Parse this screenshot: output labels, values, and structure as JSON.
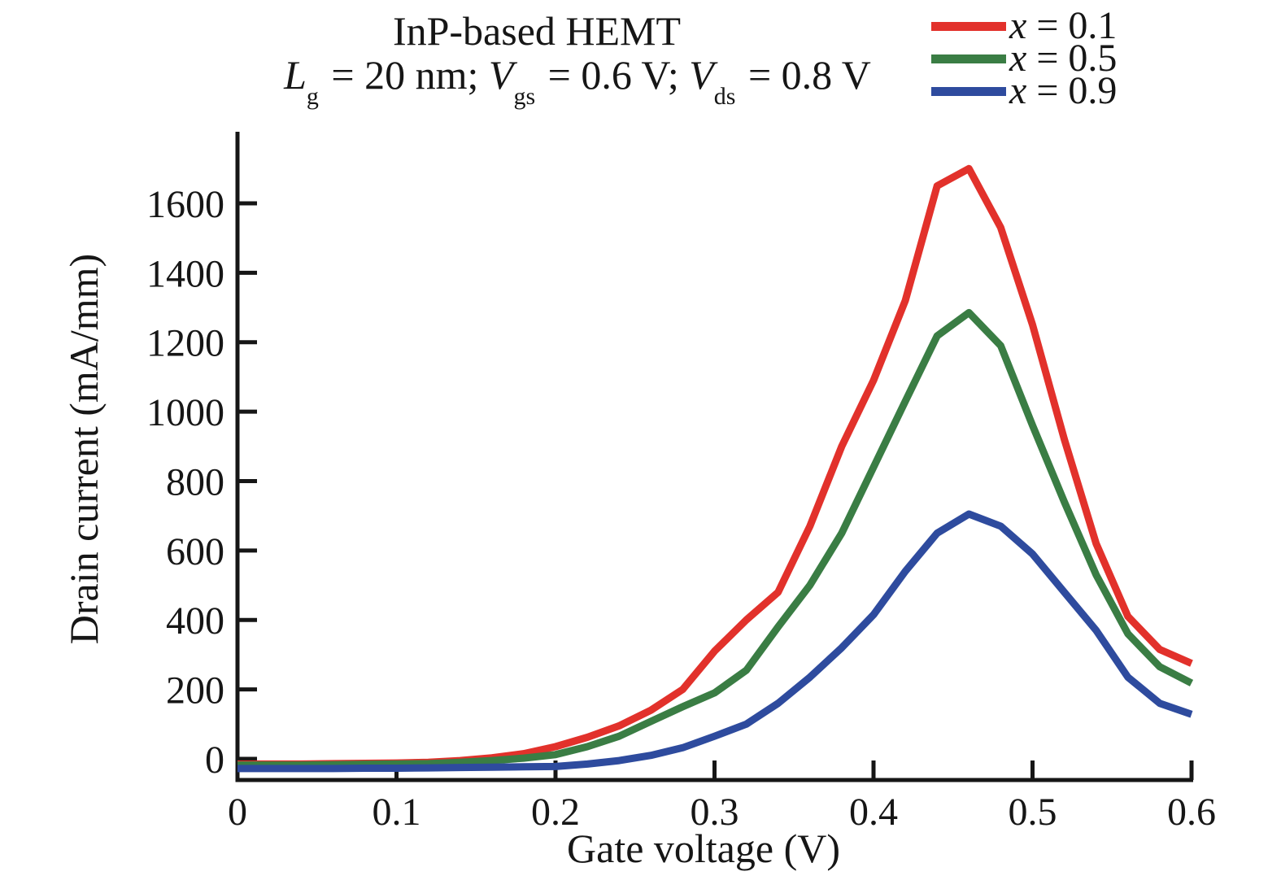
{
  "title": "InP-based HEMT",
  "subtitle": {
    "p1_var": "L",
    "p1_sub": "g",
    "p1_rest": " = 20 nm; ",
    "p2_var": "V",
    "p2_sub": "gs",
    "p2_rest": " = 0.6 V; ",
    "p3_var": "V",
    "p3_sub": "ds",
    "p3_rest": " = 0.8 V"
  },
  "chart_data": {
    "type": "line",
    "title": "InP-based HEMT",
    "subtitle_text": "Lg = 20 nm; Vgs = 0.6 V; Vds = 0.8 V",
    "xlabel": "Gate voltage (V)",
    "ylabel": "Drain current (mA/mm)",
    "xlim": [
      0,
      0.6
    ],
    "ylim": [
      -61,
      1806
    ],
    "grid": false,
    "legend_position": "top-right",
    "x_ticks": [
      0,
      0.1,
      0.2,
      0.3,
      0.4,
      0.5,
      0.6
    ],
    "x_tick_labels": [
      "0",
      "0.1",
      "0.2",
      "0.3",
      "0.4",
      "0.5",
      "0.6"
    ],
    "y_ticks": [
      0,
      200,
      400,
      600,
      800,
      1000,
      1200,
      1400,
      1600
    ],
    "y_tick_labels": [
      "0",
      "200",
      "400",
      "600",
      "800",
      "1000",
      "1200",
      "1400",
      "1600"
    ],
    "x": [
      0,
      0.02,
      0.04,
      0.06,
      0.08,
      0.1,
      0.12,
      0.14,
      0.16,
      0.18,
      0.2,
      0.22,
      0.24,
      0.26,
      0.28,
      0.3,
      0.32,
      0.34,
      0.36,
      0.38,
      0.4,
      0.42,
      0.44,
      0.46,
      0.48,
      0.5,
      0.52,
      0.54,
      0.56,
      0.58,
      0.6
    ],
    "series": [
      {
        "name": "x = 0.1",
        "label_var": "x",
        "label_rest": " = 0.1",
        "color": "#e2312b",
        "values": [
          -15,
          -15,
          -15,
          -14,
          -13,
          -12,
          -10,
          -5,
          3,
          15,
          35,
          62,
          95,
          140,
          200,
          310,
          400,
          480,
          670,
          900,
          1090,
          1320,
          1650,
          1700,
          1530,
          1250,
          920,
          620,
          410,
          315,
          275
        ]
      },
      {
        "name": "x = 0.5",
        "label_var": "x",
        "label_rest": " = 0.5",
        "color": "#3a7d44",
        "values": [
          -18,
          -18,
          -18,
          -17,
          -16,
          -15,
          -14,
          -10,
          -5,
          2,
          12,
          35,
          65,
          108,
          150,
          190,
          255,
          380,
          500,
          650,
          840,
          1030,
          1218,
          1285,
          1190,
          960,
          740,
          530,
          360,
          265,
          218
        ]
      },
      {
        "name": "x = 0.9",
        "label_var": "x",
        "label_rest": " = 0.9",
        "color": "#2e4b9e",
        "values": [
          -28,
          -28,
          -28,
          -28,
          -27,
          -27,
          -26,
          -25,
          -24,
          -23,
          -22,
          -15,
          -5,
          10,
          32,
          65,
          100,
          160,
          235,
          320,
          415,
          540,
          650,
          705,
          670,
          590,
          480,
          370,
          235,
          160,
          128
        ]
      }
    ]
  }
}
